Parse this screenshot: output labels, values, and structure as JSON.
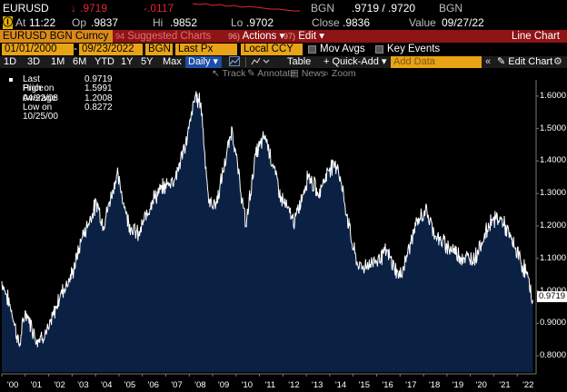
{
  "header": {
    "ticker": "EURUSD",
    "direction_arrow": "↓",
    "last": ".9719",
    "change": "-.0117",
    "source": "BGN",
    "bid_ask": ".9719 / .9720",
    "source2": "BGN"
  },
  "quote": {
    "flag": "Ⓘ",
    "at_label": "At",
    "at_time": "11:22",
    "op_label": "Op",
    "op": ".9837",
    "hi_label": "Hi",
    "hi": ".9852",
    "lo_label": "Lo",
    "lo": ".9702",
    "close_label": "Close",
    "close": ".9836",
    "value_label": "Value",
    "value_date": "09/27/22"
  },
  "commandbar": {
    "security": "EURUSD BGN Curncy",
    "suggested_num": "94",
    "suggested": "Suggested Charts",
    "actions_num": "96)",
    "actions": "Actions ▾",
    "edit_num": "97)",
    "edit": "Edit ▾",
    "title": "Line Chart"
  },
  "fields": {
    "start_date": "01/01/2000",
    "end_date": "09/23/2022",
    "source": "BGN",
    "field": "Last Px",
    "currency": "Local CCY",
    "mov_avgs": "Mov Avgs",
    "key_events": "Key Events"
  },
  "toolbar": {
    "periods": [
      "1D",
      "3D",
      "1M",
      "6M",
      "YTD",
      "1Y",
      "5Y",
      "Max"
    ],
    "frequency": "Daily ▾",
    "table": "Table",
    "quick_add": "+ Quick-Add ▾",
    "add_data_placeholder": "Add Data",
    "edit_chart": "✎ Edit Chart",
    "settings": "⚙"
  },
  "subtoolbar": {
    "track": "Track",
    "annotate": "Annotate",
    "news": "News",
    "zoom": "Zoom"
  },
  "legend": [
    {
      "label": "Last Price",
      "value": "0.9719"
    },
    {
      "label": "High on 04/22/08",
      "value": "1.5991"
    },
    {
      "label": "Average",
      "value": "1.2008"
    },
    {
      "label": "Low on 10/25/00",
      "value": "0.8272"
    }
  ],
  "colors": {
    "fill": "#0b2144",
    "line": "#ffffff",
    "accent_red": "#e3262b",
    "orange": "#e8a317"
  },
  "chart_data": {
    "type": "area",
    "series": [
      {
        "name": "Last Price",
        "x": [
          "2000-01",
          "2000-06",
          "2000-10",
          "2001-01",
          "2001-07",
          "2002-01",
          "2002-07",
          "2003-01",
          "2003-06",
          "2003-12",
          "2004-02",
          "2004-05",
          "2004-12",
          "2005-06",
          "2005-11",
          "2006-06",
          "2006-12",
          "2007-06",
          "2007-12",
          "2008-04",
          "2008-07",
          "2008-11",
          "2009-03",
          "2009-11",
          "2010-06",
          "2010-11",
          "2011-04",
          "2011-12",
          "2012-07",
          "2013-02",
          "2013-07",
          "2014-01",
          "2014-05",
          "2015-01",
          "2015-04",
          "2015-12",
          "2016-06",
          "2017-01",
          "2017-09",
          "2018-02",
          "2018-08",
          "2019-01",
          "2019-10",
          "2020-03",
          "2020-12",
          "2021-05",
          "2021-12",
          "2022-06",
          "2022-09"
        ],
        "values": [
          1.03,
          0.94,
          0.83,
          0.94,
          0.85,
          0.88,
          0.99,
          1.05,
          1.16,
          1.25,
          1.27,
          1.2,
          1.36,
          1.21,
          1.17,
          1.28,
          1.32,
          1.35,
          1.47,
          1.5991,
          1.58,
          1.27,
          1.27,
          1.5,
          1.2,
          1.42,
          1.48,
          1.29,
          1.21,
          1.36,
          1.3,
          1.38,
          1.39,
          1.13,
          1.07,
          1.09,
          1.12,
          1.04,
          1.2,
          1.25,
          1.16,
          1.14,
          1.1,
          1.1,
          1.22,
          1.22,
          1.13,
          1.05,
          0.9719
        ]
      }
    ],
    "ylim": [
      0.75,
      1.65
    ],
    "yticks": [
      "0.8000",
      "0.9000",
      "1.0000",
      "1.1000",
      "1.2000",
      "1.3000",
      "1.4000",
      "1.5000",
      "1.6000"
    ],
    "xticks": [
      "'00",
      "'01",
      "'02",
      "'03",
      "'04",
      "'05",
      "'06",
      "'07",
      "'08",
      "'09",
      "'10",
      "'11",
      "'12",
      "'13",
      "'14",
      "'15",
      "'16",
      "'17",
      "'18",
      "'19",
      "'20",
      "'21",
      "'22"
    ],
    "last_label": "0.9719",
    "grid": false,
    "legend_position": "top-left"
  }
}
